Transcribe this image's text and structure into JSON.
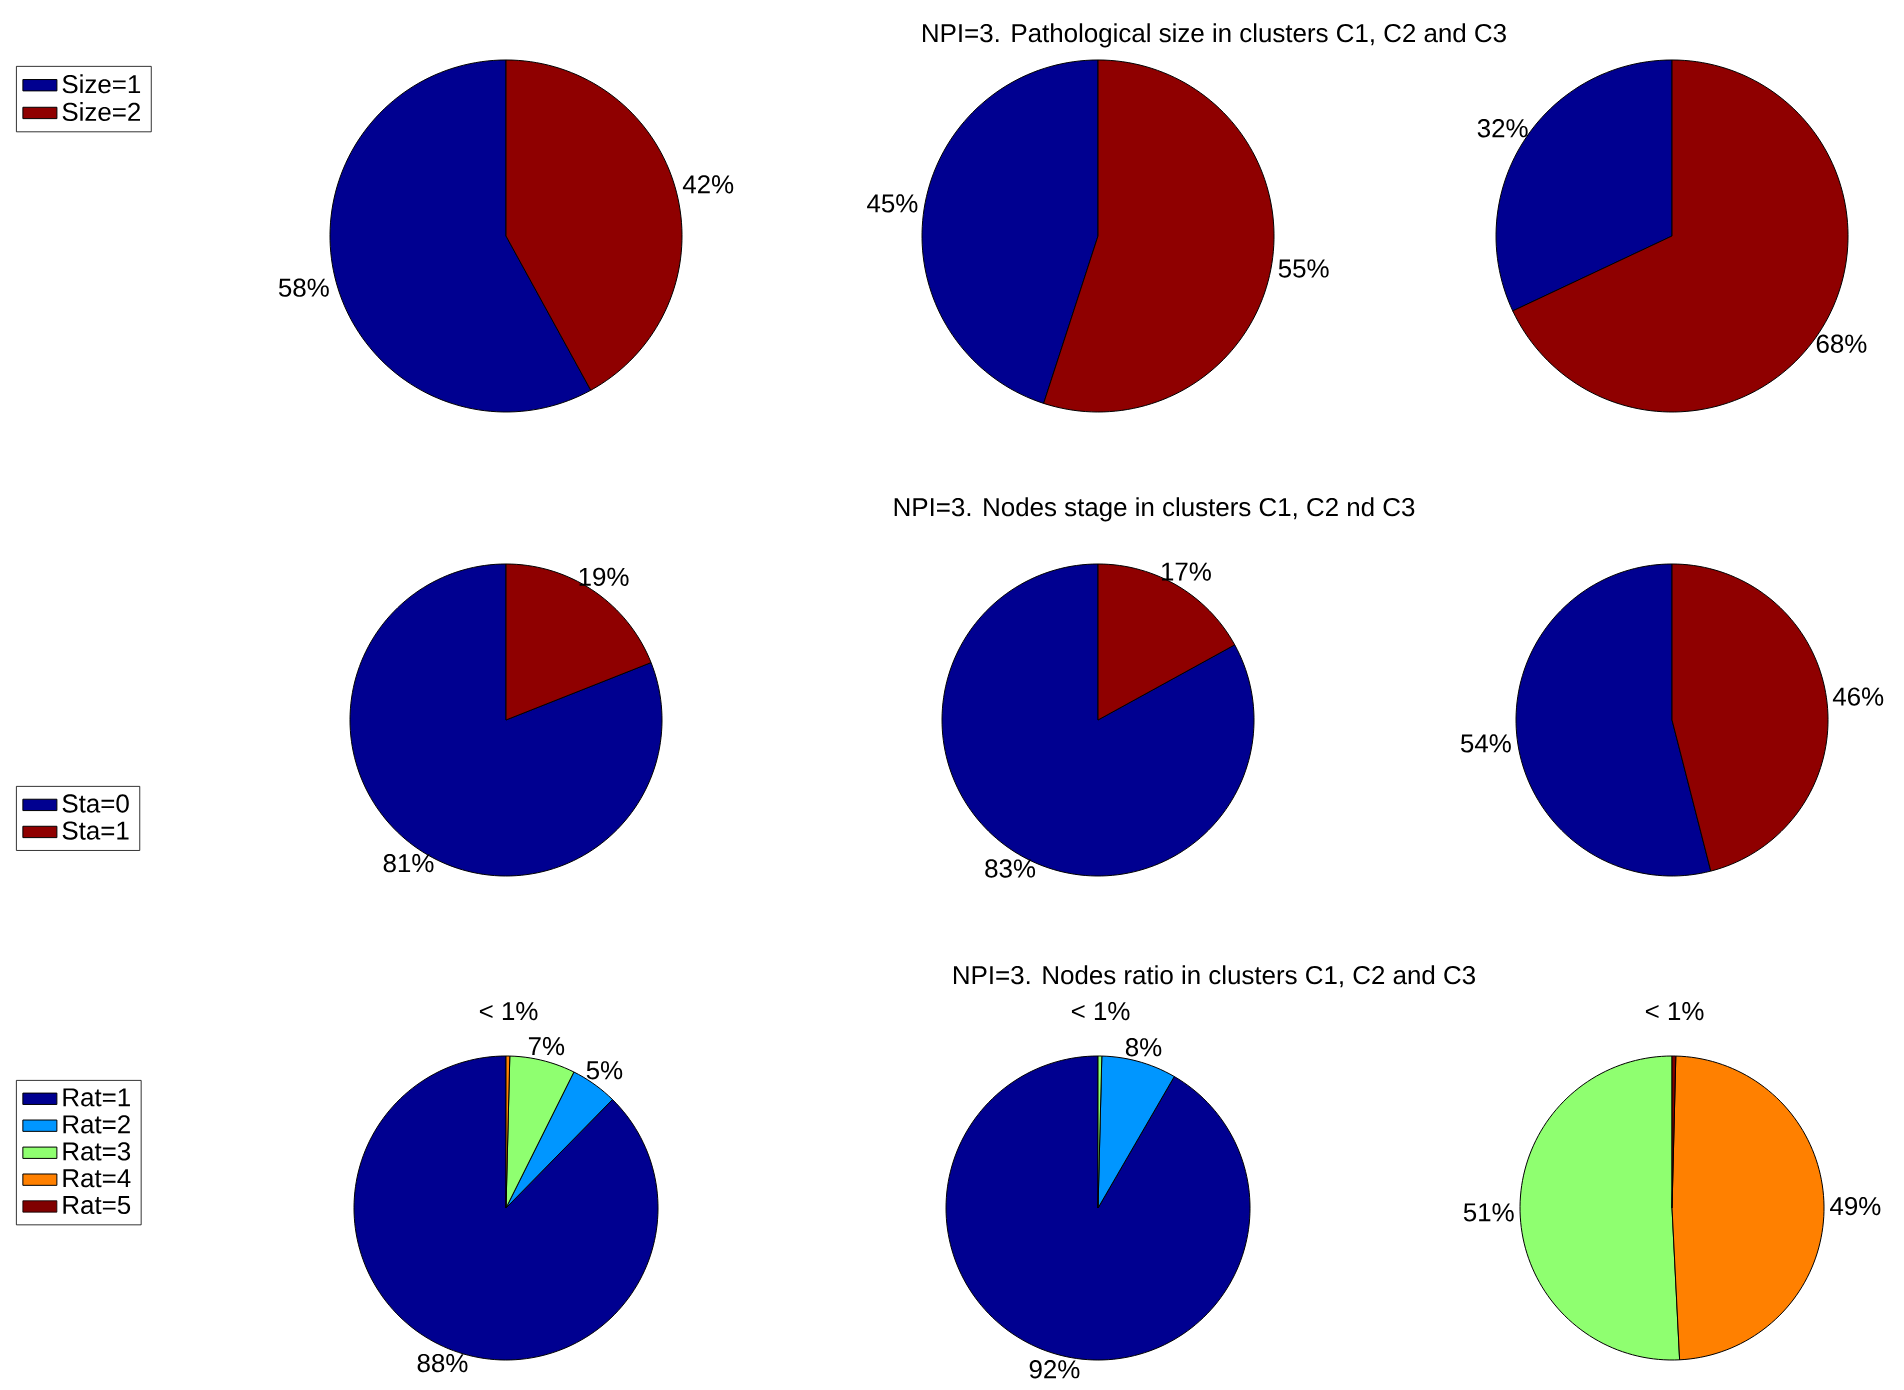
{
  "chart_data": [
    {
      "type": "pie",
      "categories": [
        "Size=1",
        "Size=2"
      ],
      "values": [
        58,
        42
      ],
      "colors": [
        "#000090",
        "#8f0000"
      ],
      "value_labels": [
        "58%",
        "42%"
      ],
      "legend": "left"
    },
    {
      "type": "pie",
      "title": "NPI=3. Pathological size in clusters C1, C2 and C3",
      "categories": [
        null,
        null
      ],
      "values": [
        45,
        55
      ],
      "colors": [
        "#000090",
        "#8f0000"
      ],
      "value_labels": [
        "45%",
        "55%"
      ]
    },
    {
      "type": "pie",
      "categories": [
        null,
        null
      ],
      "values": [
        32,
        68
      ],
      "colors": [
        "#000090",
        "#8f0000"
      ],
      "value_labels": [
        "32%",
        "68%"
      ]
    },
    {
      "type": "pie",
      "categories": [
        "Sta=0",
        "Sta=1"
      ],
      "values": [
        81,
        19
      ],
      "colors": [
        "#000090",
        "#8f0000"
      ],
      "value_labels": [
        "81%",
        "19%"
      ],
      "legend": "left"
    },
    {
      "type": "pie",
      "title": "NPI=3. Nodes stage in clusters C1, C2 nd C3",
      "categories": [
        null,
        null
      ],
      "values": [
        83,
        17
      ],
      "colors": [
        "#000090",
        "#8f0000"
      ],
      "value_labels": [
        "83%",
        "17%"
      ]
    },
    {
      "type": "pie",
      "categories": [
        null,
        null
      ],
      "values": [
        54,
        46
      ],
      "colors": [
        "#000090",
        "#8f0000"
      ],
      "value_labels": [
        "54%",
        "46%"
      ]
    },
    {
      "type": "pie",
      "categories": [
        "Rat=1",
        "Rat=2",
        "Rat=3",
        "Rat=4",
        "Rat=5"
      ],
      "values": [
        88,
        5,
        7,
        0.4,
        null
      ],
      "colors": [
        "#000090",
        "#0096ff",
        "#8fff70",
        "#ff8000",
        "#800000"
      ],
      "value_labels": [
        "88%",
        "5%",
        "7%",
        "< 1%",
        null
      ],
      "legend": "left"
    },
    {
      "type": "pie",
      "title": "NPI=3. Nodes ratio in clusters C1, C2 and C3",
      "categories": [
        null,
        null,
        null,
        null,
        null
      ],
      "values": [
        92,
        8,
        0.4,
        null,
        null
      ],
      "colors": [
        "#000090",
        "#0096ff",
        "#8fff70",
        "#ff8000",
        "#800000"
      ],
      "value_labels": [
        "92%",
        "8%",
        "< 1%",
        null,
        null
      ]
    },
    {
      "type": "pie",
      "categories": [
        null,
        null,
        null,
        null,
        null
      ],
      "values": [
        null,
        null,
        51,
        49,
        0.4
      ],
      "colors": [
        "#000090",
        "#0096ff",
        "#8fff70",
        "#ff8000",
        "#800000"
      ],
      "value_labels": [
        null,
        null,
        "51%",
        "49%",
        "< 1%"
      ]
    }
  ]
}
